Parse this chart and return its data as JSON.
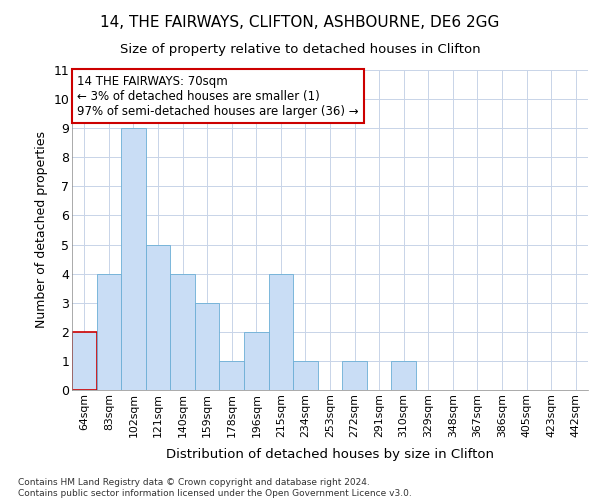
{
  "title1": "14, THE FAIRWAYS, CLIFTON, ASHBOURNE, DE6 2GG",
  "title2": "Size of property relative to detached houses in Clifton",
  "xlabel": "Distribution of detached houses by size in Clifton",
  "ylabel": "Number of detached properties",
  "categories": [
    "64sqm",
    "83sqm",
    "102sqm",
    "121sqm",
    "140sqm",
    "159sqm",
    "178sqm",
    "196sqm",
    "215sqm",
    "234sqm",
    "253sqm",
    "272sqm",
    "291sqm",
    "310sqm",
    "329sqm",
    "348sqm",
    "367sqm",
    "386sqm",
    "405sqm",
    "423sqm",
    "442sqm"
  ],
  "values": [
    2,
    4,
    9,
    5,
    4,
    3,
    1,
    2,
    4,
    1,
    0,
    1,
    0,
    1,
    0,
    0,
    0,
    0,
    0,
    0,
    0
  ],
  "bar_color": "#c9ddf5",
  "bar_edge_color": "#6baed6",
  "annotation_text": "14 THE FAIRWAYS: 70sqm\n← 3% of detached houses are smaller (1)\n97% of semi-detached houses are larger (36) →",
  "annotation_box_color": "#ffffff",
  "annotation_box_edge_color": "#cc0000",
  "ylim": [
    0,
    11
  ],
  "yticks": [
    0,
    1,
    2,
    3,
    4,
    5,
    6,
    7,
    8,
    9,
    10,
    11
  ],
  "footer_text": "Contains HM Land Registry data © Crown copyright and database right 2024.\nContains public sector information licensed under the Open Government Licence v3.0.",
  "background_color": "#ffffff",
  "grid_color": "#c8d4e8"
}
